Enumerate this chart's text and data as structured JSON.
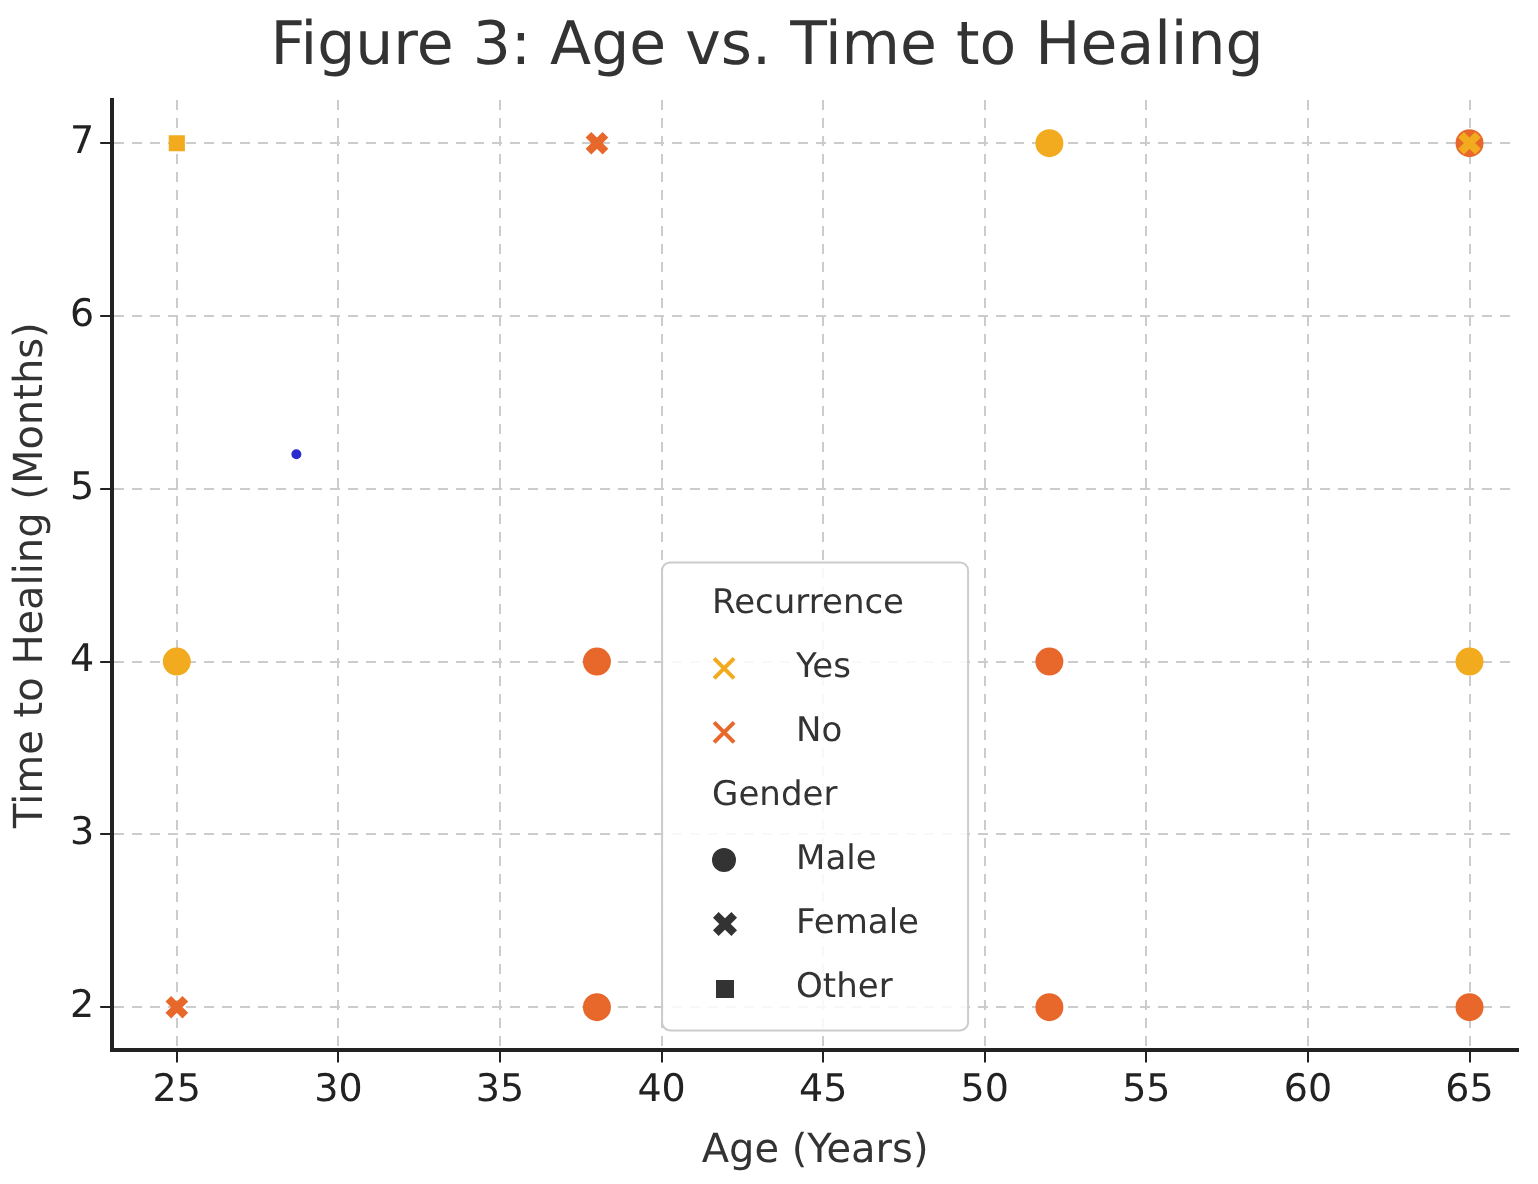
{
  "chart_data": {
    "type": "scatter",
    "title": "Figure 3: Age vs. Time to Healing",
    "xlabel": "Age (Years)",
    "ylabel": "Time to Healing (Months)",
    "legend_title": "Recurrence",
    "annotations": [
      "Gender",
      "Male",
      "Female",
      "Other"
    ],
    "xlim": [
      23,
      66.5
    ],
    "xticks": [
      25,
      30,
      35,
      40,
      45,
      50,
      55,
      60,
      65
    ],
    "ylim": [
      1.75,
      7.25
    ],
    "yticks": [
      2,
      3,
      4,
      5,
      6,
      7
    ],
    "grid": true,
    "legend": "bottom",
    "series": [
      {
        "name": "Yes",
        "color": "#f2ab1e",
        "marker": "circle",
        "x": [
          25,
          52,
          65
        ],
        "values": [
          4,
          7,
          4
        ]
      },
      {
        "color": "#f2ab1e",
        "marker": "cross",
        "x": [
          65
        ],
        "values": [
          7
        ]
      },
      {
        "color": "#f2ab1e",
        "marker": "square",
        "x": [
          25
        ],
        "values": [
          7
        ]
      },
      {
        "name": "No",
        "color": "#e8672a",
        "marker": "circle",
        "x": [
          38,
          38,
          52,
          52,
          65,
          65
        ],
        "values": [
          4,
          2,
          4,
          2,
          7,
          2
        ]
      },
      {
        "color": "#e8672a",
        "marker": "cross",
        "x": [
          25,
          38
        ],
        "values": [
          2,
          7
        ]
      },
      {
        "color": "#2a2ad0",
        "marker": "circle",
        "x": [
          28.7
        ],
        "values": [
          5.2
        ]
      }
    ]
  }
}
